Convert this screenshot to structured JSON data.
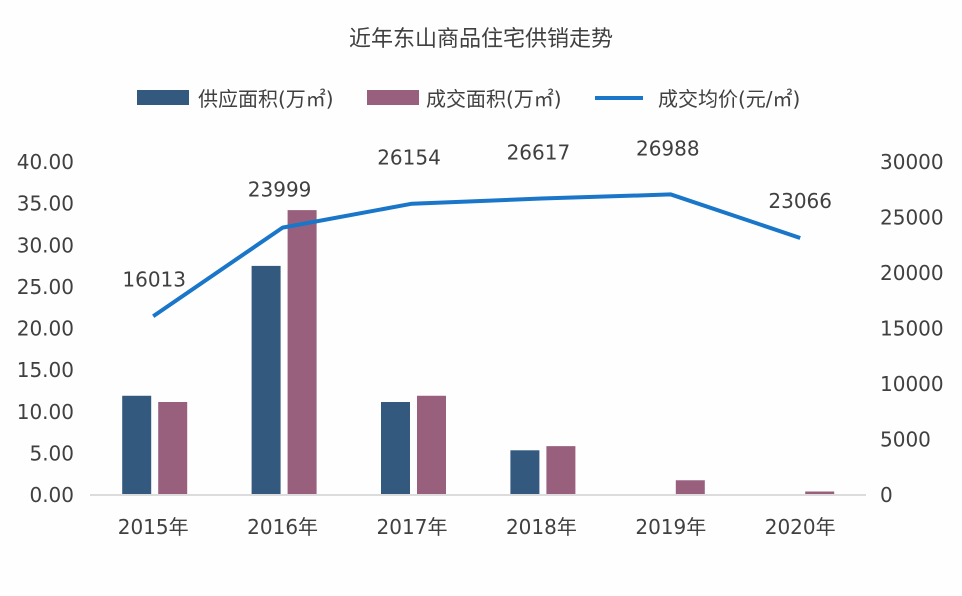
{
  "chart_data": {
    "type": "bar+line",
    "title": "近年东山商品住宅供销走势",
    "categories": [
      "2015年",
      "2016年",
      "2017年",
      "2018年",
      "2019年",
      "2020年"
    ],
    "series": [
      {
        "name": "供应面积(万㎡)",
        "type": "bar",
        "axis": "left",
        "color": "#335a7e",
        "values": [
          11.8,
          27.4,
          11.05,
          5.25,
          0,
          0
        ]
      },
      {
        "name": "成交面积(万㎡)",
        "type": "bar",
        "axis": "left",
        "color": "#98607c",
        "values": [
          11.05,
          34.1,
          11.8,
          5.75,
          1.65,
          0.3
        ]
      },
      {
        "name": "成交均价(元/㎡)",
        "type": "line",
        "axis": "right",
        "color": "#1976c8",
        "values": [
          16013,
          23999,
          26154,
          26617,
          26988,
          23066
        ],
        "labels": [
          "16013",
          "23999",
          "26154",
          "26617",
          "26988",
          "23066"
        ]
      }
    ],
    "left_axis": {
      "min": 0,
      "max": 40,
      "ticks": [
        "0.00",
        "5.00",
        "10.00",
        "15.00",
        "20.00",
        "25.00",
        "30.00",
        "35.00",
        "40.00"
      ]
    },
    "right_axis": {
      "min": 0,
      "max": 30000,
      "ticks": [
        "0",
        "5000",
        "10000",
        "15000",
        "20000",
        "25000",
        "30000"
      ]
    },
    "legend_position": "top"
  }
}
